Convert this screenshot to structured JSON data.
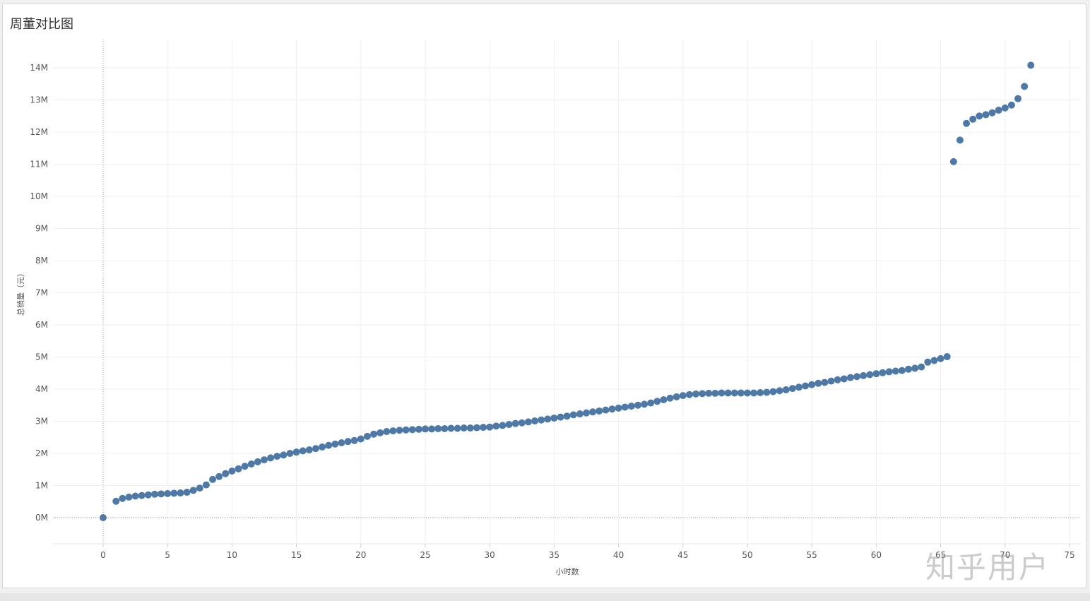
{
  "title": "周董对比图",
  "watermark": "知乎用户",
  "chart_data": {
    "type": "scatter",
    "title": "周董对比图",
    "xlabel": "小时数",
    "ylabel": "总销量（元）",
    "xlim": [
      -4,
      76
    ],
    "ylim": [
      -0.8,
      14.8
    ],
    "x_ticks": [
      0,
      5,
      10,
      15,
      20,
      25,
      30,
      35,
      40,
      45,
      50,
      55,
      60,
      65,
      70,
      75
    ],
    "x_tick_labels": [
      "0",
      "5",
      "10",
      "15",
      "20",
      "25",
      "30",
      "35",
      "40",
      "45",
      "50",
      "55",
      "60",
      "65",
      "70",
      "75"
    ],
    "y_ticks": [
      0,
      1,
      2,
      3,
      4,
      5,
      6,
      7,
      8,
      9,
      10,
      11,
      12,
      13,
      14
    ],
    "y_tick_labels": [
      "0M",
      "1M",
      "2M",
      "3M",
      "4M",
      "5M",
      "6M",
      "7M",
      "8M",
      "9M",
      "10M",
      "11M",
      "12M",
      "13M",
      "14M"
    ],
    "y_unit": "M",
    "grid": true,
    "color": "#4e79a7",
    "series": [
      {
        "name": "",
        "points": [
          [
            0,
            0.0
          ],
          [
            1.0,
            0.51
          ],
          [
            1.5,
            0.6
          ],
          [
            2.0,
            0.64
          ],
          [
            2.5,
            0.67
          ],
          [
            3.0,
            0.69
          ],
          [
            3.5,
            0.71
          ],
          [
            4.0,
            0.73
          ],
          [
            4.5,
            0.74
          ],
          [
            5.0,
            0.75
          ],
          [
            5.5,
            0.76
          ],
          [
            6.0,
            0.77
          ],
          [
            6.5,
            0.79
          ],
          [
            7.0,
            0.85
          ],
          [
            7.5,
            0.92
          ],
          [
            8.0,
            1.02
          ],
          [
            8.5,
            1.19
          ],
          [
            9.0,
            1.28
          ],
          [
            9.5,
            1.37
          ],
          [
            10.0,
            1.45
          ],
          [
            10.5,
            1.52
          ],
          [
            11.0,
            1.6
          ],
          [
            11.5,
            1.67
          ],
          [
            12.0,
            1.74
          ],
          [
            12.5,
            1.8
          ],
          [
            13.0,
            1.86
          ],
          [
            13.5,
            1.91
          ],
          [
            14.0,
            1.95
          ],
          [
            14.5,
            2.0
          ],
          [
            15.0,
            2.04
          ],
          [
            15.5,
            2.08
          ],
          [
            16.0,
            2.11
          ],
          [
            16.5,
            2.15
          ],
          [
            17.0,
            2.2
          ],
          [
            17.5,
            2.25
          ],
          [
            18.0,
            2.29
          ],
          [
            18.5,
            2.33
          ],
          [
            19.0,
            2.37
          ],
          [
            19.5,
            2.4
          ],
          [
            20.0,
            2.45
          ],
          [
            20.5,
            2.53
          ],
          [
            21.0,
            2.6
          ],
          [
            21.5,
            2.64
          ],
          [
            22.0,
            2.68
          ],
          [
            22.5,
            2.7
          ],
          [
            23.0,
            2.72
          ],
          [
            23.5,
            2.73
          ],
          [
            24.0,
            2.74
          ],
          [
            24.5,
            2.75
          ],
          [
            25.0,
            2.76
          ],
          [
            25.5,
            2.76
          ],
          [
            26.0,
            2.77
          ],
          [
            26.5,
            2.77
          ],
          [
            27.0,
            2.78
          ],
          [
            27.5,
            2.78
          ],
          [
            28.0,
            2.79
          ],
          [
            28.5,
            2.79
          ],
          [
            29.0,
            2.8
          ],
          [
            29.5,
            2.81
          ],
          [
            30.0,
            2.82
          ],
          [
            30.5,
            2.85
          ],
          [
            31.0,
            2.87
          ],
          [
            31.5,
            2.9
          ],
          [
            32.0,
            2.93
          ],
          [
            32.5,
            2.95
          ],
          [
            33.0,
            2.98
          ],
          [
            33.5,
            3.01
          ],
          [
            34.0,
            3.04
          ],
          [
            34.5,
            3.07
          ],
          [
            35.0,
            3.1
          ],
          [
            35.5,
            3.13
          ],
          [
            36.0,
            3.16
          ],
          [
            36.5,
            3.2
          ],
          [
            37.0,
            3.23
          ],
          [
            37.5,
            3.26
          ],
          [
            38.0,
            3.29
          ],
          [
            38.5,
            3.32
          ],
          [
            39.0,
            3.35
          ],
          [
            39.5,
            3.38
          ],
          [
            40.0,
            3.41
          ],
          [
            40.5,
            3.44
          ],
          [
            41.0,
            3.47
          ],
          [
            41.5,
            3.5
          ],
          [
            42.0,
            3.53
          ],
          [
            42.5,
            3.57
          ],
          [
            43.0,
            3.62
          ],
          [
            43.5,
            3.67
          ],
          [
            44.0,
            3.72
          ],
          [
            44.5,
            3.76
          ],
          [
            45.0,
            3.8
          ],
          [
            45.5,
            3.83
          ],
          [
            46.0,
            3.85
          ],
          [
            46.5,
            3.86
          ],
          [
            47.0,
            3.87
          ],
          [
            47.5,
            3.87
          ],
          [
            48.0,
            3.88
          ],
          [
            48.5,
            3.88
          ],
          [
            49.0,
            3.88
          ],
          [
            49.5,
            3.88
          ],
          [
            50.0,
            3.88
          ],
          [
            50.5,
            3.88
          ],
          [
            51.0,
            3.89
          ],
          [
            51.5,
            3.9
          ],
          [
            52.0,
            3.92
          ],
          [
            52.5,
            3.95
          ],
          [
            53.0,
            3.98
          ],
          [
            53.5,
            4.02
          ],
          [
            54.0,
            4.06
          ],
          [
            54.5,
            4.1
          ],
          [
            55.0,
            4.14
          ],
          [
            55.5,
            4.18
          ],
          [
            56.0,
            4.21
          ],
          [
            56.5,
            4.25
          ],
          [
            57.0,
            4.29
          ],
          [
            57.5,
            4.32
          ],
          [
            58.0,
            4.36
          ],
          [
            58.5,
            4.39
          ],
          [
            59.0,
            4.42
          ],
          [
            59.5,
            4.45
          ],
          [
            60.0,
            4.48
          ],
          [
            60.5,
            4.51
          ],
          [
            61.0,
            4.54
          ],
          [
            61.5,
            4.56
          ],
          [
            62.0,
            4.58
          ],
          [
            62.5,
            4.62
          ],
          [
            63.0,
            4.65
          ],
          [
            63.5,
            4.69
          ],
          [
            64.0,
            4.84
          ],
          [
            64.5,
            4.89
          ],
          [
            65.0,
            4.95
          ],
          [
            65.5,
            5.01
          ]
        ]
      },
      {
        "name": "",
        "points": [
          [
            66.0,
            11.08
          ],
          [
            66.5,
            11.75
          ],
          [
            67.0,
            12.27
          ],
          [
            67.5,
            12.4
          ],
          [
            68.0,
            12.5
          ],
          [
            68.5,
            12.54
          ],
          [
            69.0,
            12.6
          ],
          [
            69.5,
            12.68
          ],
          [
            70.0,
            12.75
          ],
          [
            70.5,
            12.84
          ],
          [
            71.0,
            13.04
          ],
          [
            71.5,
            13.42
          ],
          [
            72.0,
            14.08
          ]
        ]
      }
    ]
  }
}
